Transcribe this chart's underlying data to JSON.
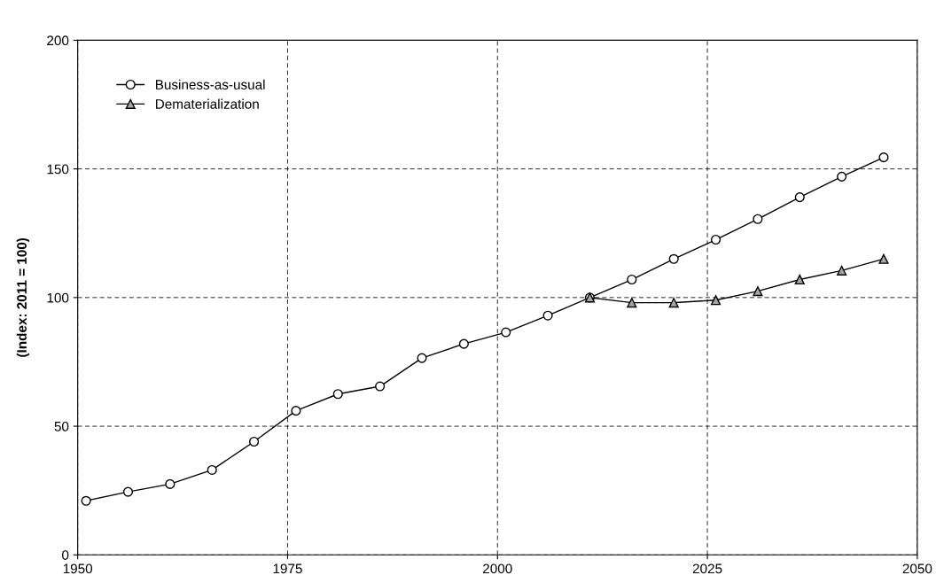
{
  "chart_data": {
    "type": "line",
    "ylabel": "(Index: 2011 = 100)",
    "xlim": [
      1950,
      2050
    ],
    "xticks": [
      1950,
      1975,
      2000,
      2025,
      2050
    ],
    "ylim": [
      0,
      200
    ],
    "yticks": [
      0,
      50,
      100,
      150,
      200
    ],
    "grid": true,
    "legend": "top left",
    "line_style": "solid",
    "series": [
      {
        "name": "Business-as-usual",
        "color": "#000000",
        "marker": "circle",
        "x": [
          1951,
          1956,
          1961,
          1966,
          1971,
          1976,
          1981,
          1986,
          1991,
          1996,
          2001,
          2006,
          2011,
          2016,
          2021,
          2026,
          2031,
          2036,
          2041,
          2046
        ],
        "values": [
          21,
          24.5,
          27.5,
          33,
          44,
          56,
          62.5,
          65.5,
          76.5,
          82,
          86.5,
          93,
          100,
          107,
          115,
          122.5,
          130.5,
          139,
          147,
          154.5
        ]
      },
      {
        "name": "Dematerialization",
        "color": "#000000",
        "marker": "triangle",
        "x": [
          2011,
          2016,
          2021,
          2026,
          2031,
          2036,
          2041,
          2046
        ],
        "values": [
          100,
          98,
          98,
          99,
          102.5,
          107,
          110.5,
          115
        ]
      }
    ]
  }
}
